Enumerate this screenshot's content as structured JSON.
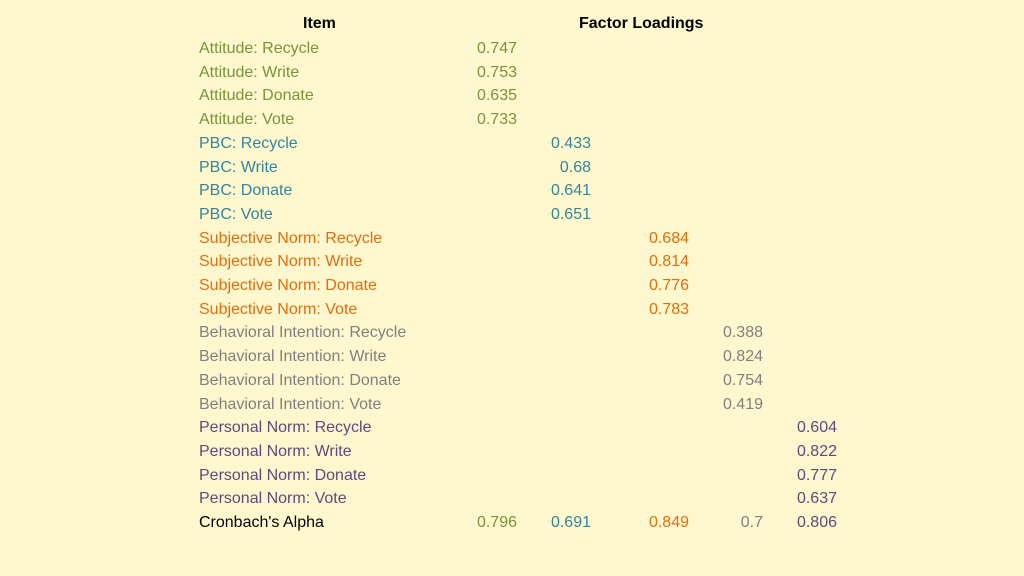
{
  "headers": {
    "item": "Item",
    "factor_loadings": "Factor Loadings"
  },
  "colors": {
    "background": "#fff8cf",
    "attitude": "#77933c",
    "pbc": "#31859c",
    "subjective_norm": "#e46c0a",
    "behavioral_intention": "#7f7f7f",
    "personal_norm": "#60497a",
    "alpha_label": "#000000"
  },
  "rows": [
    {
      "label": "Attitude: Recycle",
      "f1": "0.747",
      "f2": "",
      "f3": "",
      "f4": "",
      "f5": ""
    },
    {
      "label": "Attitude: Write",
      "f1": "0.753",
      "f2": "",
      "f3": "",
      "f4": "",
      "f5": ""
    },
    {
      "label": "Attitude: Donate",
      "f1": "0.635",
      "f2": "",
      "f3": "",
      "f4": "",
      "f5": ""
    },
    {
      "label": "Attitude: Vote",
      "f1": "0.733",
      "f2": "",
      "f3": "",
      "f4": "",
      "f5": ""
    },
    {
      "label": "PBC: Recycle",
      "f1": "",
      "f2": "0.433",
      "f3": "",
      "f4": "",
      "f5": ""
    },
    {
      "label": "PBC: Write",
      "f1": "",
      "f2": "0.68",
      "f3": "",
      "f4": "",
      "f5": ""
    },
    {
      "label": "PBC: Donate",
      "f1": "",
      "f2": "0.641",
      "f3": "",
      "f4": "",
      "f5": ""
    },
    {
      "label": "PBC: Vote",
      "f1": "",
      "f2": "0.651",
      "f3": "",
      "f4": "",
      "f5": ""
    },
    {
      "label": "Subjective Norm: Recycle",
      "f1": "",
      "f2": "",
      "f3": "0.684",
      "f4": "",
      "f5": ""
    },
    {
      "label": "Subjective Norm: Write",
      "f1": "",
      "f2": "",
      "f3": "0.814",
      "f4": "",
      "f5": ""
    },
    {
      "label": "Subjective Norm: Donate",
      "f1": "",
      "f2": "",
      "f3": "0.776",
      "f4": "",
      "f5": ""
    },
    {
      "label": "Subjective Norm: Vote",
      "f1": "",
      "f2": "",
      "f3": "0.783",
      "f4": "",
      "f5": ""
    },
    {
      "label": "Behavioral Intention: Recycle",
      "f1": "",
      "f2": "",
      "f3": "",
      "f4": "0.388",
      "f5": ""
    },
    {
      "label": "Behavioral Intention: Write",
      "f1": "",
      "f2": "",
      "f3": "",
      "f4": "0.824",
      "f5": ""
    },
    {
      "label": "Behavioral Intention: Donate",
      "f1": "",
      "f2": "",
      "f3": "",
      "f4": "0.754",
      "f5": ""
    },
    {
      "label": "Behavioral Intention: Vote",
      "f1": "",
      "f2": "",
      "f3": "",
      "f4": "0.419",
      "f5": ""
    },
    {
      "label": "Personal Norm: Recycle",
      "f1": "",
      "f2": "",
      "f3": "",
      "f4": "",
      "f5": "0.604"
    },
    {
      "label": "Personal Norm: Write",
      "f1": "",
      "f2": "",
      "f3": "",
      "f4": "",
      "f5": "0.822"
    },
    {
      "label": "Personal Norm: Donate",
      "f1": "",
      "f2": "",
      "f3": "",
      "f4": "",
      "f5": "0.777"
    },
    {
      "label": "Personal Norm: Vote",
      "f1": "",
      "f2": "",
      "f3": "",
      "f4": "",
      "f5": "0.637"
    },
    {
      "label": "Cronbach's Alpha",
      "f1": "0.796",
      "f2": "0.691",
      "f3": "0.849",
      "f4": "0.7",
      "f5": "0.806"
    }
  ]
}
